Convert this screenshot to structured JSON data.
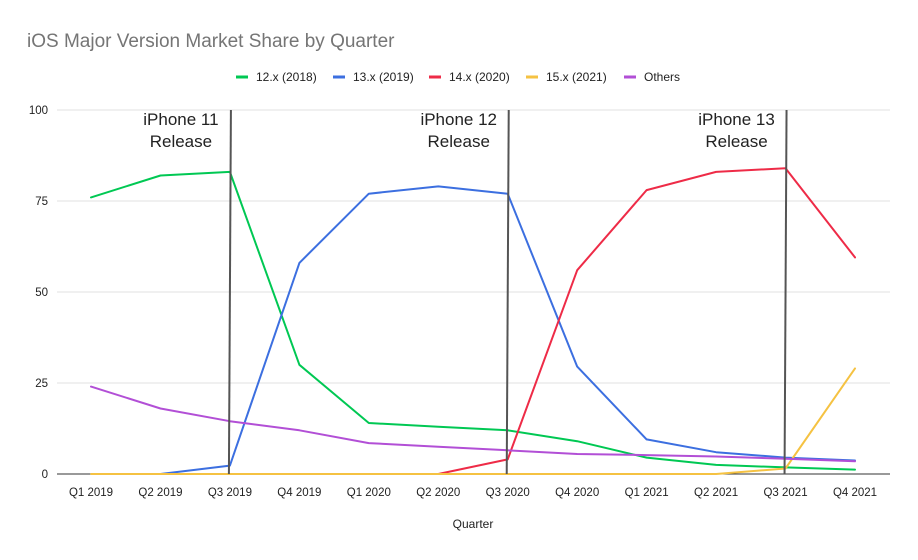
{
  "chart_data": {
    "type": "line",
    "title": "iOS Major Version Market Share by Quarter",
    "xlabel": "Quarter",
    "ylabel": "",
    "ylim": [
      0,
      100
    ],
    "yticks": [
      0,
      25,
      50,
      75,
      100
    ],
    "legend_position": "top-center",
    "grid": true,
    "categories": [
      "Q1 2019",
      "Q2 2019",
      "Q3 2019",
      "Q4 2019",
      "Q1 2020",
      "Q2 2020",
      "Q3 2020",
      "Q4 2020",
      "Q1 2021",
      "Q2 2021",
      "Q3 2021",
      "Q4 2021"
    ],
    "series": [
      {
        "name": "12.x (2018)",
        "color": "#00c853",
        "values": [
          76,
          82,
          83,
          30,
          14,
          13,
          12,
          9,
          4.5,
          2.5,
          1.8,
          1.2
        ]
      },
      {
        "name": "13.x (2019)",
        "color": "#3c6fe0",
        "values": [
          0,
          0,
          2.3,
          58,
          77,
          79,
          77,
          29.5,
          9.5,
          6,
          4.5,
          3.7
        ]
      },
      {
        "name": "14.x (2020)",
        "color": "#ee2b47",
        "values": [
          null,
          null,
          null,
          null,
          null,
          0,
          4,
          56,
          78,
          83,
          84,
          59.5
        ]
      },
      {
        "name": "15.x (2021)",
        "color": "#f5c242",
        "values": [
          0,
          0,
          0,
          0,
          0,
          0,
          0,
          0,
          0,
          0,
          1.5,
          29
        ]
      },
      {
        "name": "Others",
        "color": "#b24fd6",
        "values": [
          24,
          18,
          14.5,
          12,
          8.5,
          7.5,
          6.5,
          5.5,
          5.2,
          4.8,
          4.2,
          3.5
        ]
      }
    ],
    "annotations": [
      {
        "category_index": 2,
        "line1": "iPhone 11",
        "line2": "Release"
      },
      {
        "category_index": 6,
        "line1": "iPhone 12",
        "line2": "Release"
      },
      {
        "category_index": 10,
        "line1": "iPhone 13",
        "line2": "Release"
      }
    ]
  }
}
